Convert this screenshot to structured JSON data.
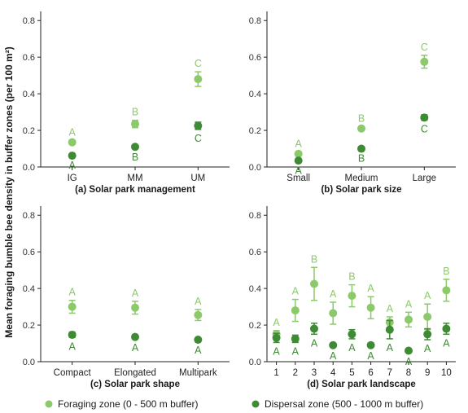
{
  "figure": {
    "ylabel": "Mean foraging bumble bee density in buffer zones (per 100 m²)",
    "legend": [
      {
        "label": "Foraging zone (0 - 500 m buffer)",
        "color": "#8cc96b"
      },
      {
        "label": "Dispersal zone (500 - 1000 m buffer)",
        "color": "#3f8a34"
      }
    ]
  },
  "chart_data": [
    {
      "type": "scatter",
      "title": "(a) Solar park management",
      "categories": [
        "IG",
        "MM",
        "UM"
      ],
      "ylim": [
        0,
        0.85
      ],
      "yticks": [
        "0.0",
        "0.2",
        "0.4",
        "0.6",
        "0.8"
      ],
      "series": [
        {
          "name": "Foraging zone (0 - 500 m buffer)",
          "color": "#8cc96b",
          "values": [
            0.135,
            0.235,
            0.48
          ],
          "err": [
            0.01,
            0.02,
            0.04
          ],
          "letters": [
            "A",
            "B",
            "C"
          ],
          "letter_pos": [
            "above",
            "above",
            "above"
          ]
        },
        {
          "name": "Dispersal zone (500 - 1000 m buffer)",
          "color": "#3f8a34",
          "values": [
            0.062,
            0.11,
            0.225
          ],
          "err": [
            0.005,
            0.008,
            0.02
          ],
          "letters": [
            "A",
            "B",
            "C"
          ],
          "letter_pos": [
            "below",
            "below",
            "below"
          ]
        }
      ]
    },
    {
      "type": "scatter",
      "title": "(b) Solar park size",
      "categories": [
        "Small",
        "Medium",
        "Large"
      ],
      "ylim": [
        0,
        0.85
      ],
      "yticks": [
        "0.0",
        "0.2",
        "0.4",
        "0.6",
        "0.8"
      ],
      "series": [
        {
          "name": "Foraging zone (0 - 500 m buffer)",
          "color": "#8cc96b",
          "values": [
            0.072,
            0.21,
            0.575
          ],
          "err": [
            0.01,
            0.01,
            0.035
          ],
          "letters": [
            "A",
            "B",
            "C"
          ],
          "letter_pos": [
            "above",
            "above",
            "above"
          ]
        },
        {
          "name": "Dispersal zone (500 - 1000 m buffer)",
          "color": "#3f8a34",
          "values": [
            0.035,
            0.1,
            0.27
          ],
          "err": [
            0.005,
            0.005,
            0.015
          ],
          "letters": [
            "A",
            "B",
            "C"
          ],
          "letter_pos": [
            "below",
            "below",
            "below"
          ]
        }
      ]
    },
    {
      "type": "scatter",
      "title": "(c) Solar park shape",
      "categories": [
        "Compact",
        "Elongated",
        "Multipark"
      ],
      "ylim": [
        0,
        0.85
      ],
      "yticks": [
        "0.0",
        "0.2",
        "0.4",
        "0.6",
        "0.8"
      ],
      "series": [
        {
          "name": "Foraging zone (0 - 500 m buffer)",
          "color": "#8cc96b",
          "values": [
            0.3,
            0.295,
            0.255
          ],
          "err": [
            0.035,
            0.035,
            0.03
          ],
          "letters": [
            "A",
            "A",
            "A"
          ],
          "letter_pos": [
            "above",
            "above",
            "above"
          ]
        },
        {
          "name": "Dispersal zone (500 - 1000 m buffer)",
          "color": "#3f8a34",
          "values": [
            0.147,
            0.135,
            0.12
          ],
          "err": [
            0.015,
            0.01,
            0.008
          ],
          "letters": [
            "A",
            "A",
            "A"
          ],
          "letter_pos": [
            "below",
            "below",
            "below"
          ]
        }
      ]
    },
    {
      "type": "scatter",
      "title": "(d) Solar park landscape",
      "categories": [
        "1",
        "2",
        "3",
        "4",
        "5",
        "6",
        "7",
        "8",
        "9",
        "10"
      ],
      "ylim": [
        0,
        0.85
      ],
      "yticks": [
        "0.0",
        "0.2",
        "0.4",
        "0.6",
        "0.8"
      ],
      "series": [
        {
          "name": "Foraging zone (0 - 500 m buffer)",
          "color": "#8cc96b",
          "values": [
            0.15,
            0.28,
            0.425,
            0.265,
            0.36,
            0.295,
            0.215,
            0.23,
            0.245,
            0.39
          ],
          "err": [
            0.02,
            0.06,
            0.09,
            0.06,
            0.06,
            0.06,
            0.03,
            0.04,
            0.07,
            0.06
          ],
          "letters": [
            "A",
            "A",
            "B",
            "A",
            "B",
            "A",
            "A",
            "A",
            "A",
            "B"
          ],
          "letter_pos": [
            "above",
            "above",
            "above",
            "above",
            "above",
            "above",
            "above",
            "above",
            "above",
            "above"
          ]
        },
        {
          "name": "Dispersal zone (500 - 1000 m buffer)",
          "color": "#3f8a34",
          "values": [
            0.13,
            0.125,
            0.18,
            0.09,
            0.15,
            0.09,
            0.175,
            0.06,
            0.15,
            0.18
          ],
          "err": [
            0.025,
            0.02,
            0.03,
            0.01,
            0.025,
            0.01,
            0.05,
            0.01,
            0.03,
            0.03
          ],
          "letters": [
            "A",
            "A",
            "A",
            "A",
            "A",
            "A",
            "A",
            "A",
            "A",
            "A"
          ],
          "letter_pos": [
            "below",
            "below",
            "below",
            "below",
            "below",
            "below",
            "below",
            "below",
            "below",
            "below"
          ]
        }
      ]
    }
  ]
}
